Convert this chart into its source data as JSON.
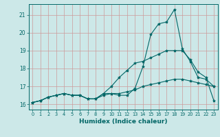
{
  "xlabel": "Humidex (Indice chaleur)",
  "background_color": "#cce8e8",
  "grid_color": "#aacccc",
  "line_color": "#006666",
  "xlim": [
    -0.5,
    23.5
  ],
  "ylim": [
    15.7,
    21.6
  ],
  "yticks": [
    16,
    17,
    18,
    19,
    20,
    21
  ],
  "xticks": [
    0,
    1,
    2,
    3,
    4,
    5,
    6,
    7,
    8,
    9,
    10,
    11,
    12,
    13,
    14,
    15,
    16,
    17,
    18,
    19,
    20,
    21,
    22,
    23
  ],
  "series": [
    [
      16.1,
      16.2,
      16.4,
      16.5,
      16.6,
      16.5,
      16.5,
      16.3,
      16.3,
      16.6,
      16.6,
      16.5,
      16.5,
      16.9,
      18.1,
      19.9,
      20.5,
      20.6,
      21.3,
      19.1,
      18.4,
      17.5,
      17.4,
      17.0
    ],
    [
      16.1,
      16.2,
      16.4,
      16.5,
      16.6,
      16.5,
      16.5,
      16.3,
      16.3,
      16.6,
      17.0,
      17.5,
      17.9,
      18.3,
      18.4,
      18.6,
      18.8,
      19.0,
      19.0,
      19.0,
      18.5,
      17.8,
      17.5,
      16.2
    ],
    [
      16.1,
      16.2,
      16.4,
      16.5,
      16.6,
      16.5,
      16.5,
      16.3,
      16.3,
      16.5,
      16.6,
      16.6,
      16.7,
      16.8,
      17.0,
      17.1,
      17.2,
      17.3,
      17.4,
      17.4,
      17.3,
      17.2,
      17.1,
      17.0
    ]
  ]
}
